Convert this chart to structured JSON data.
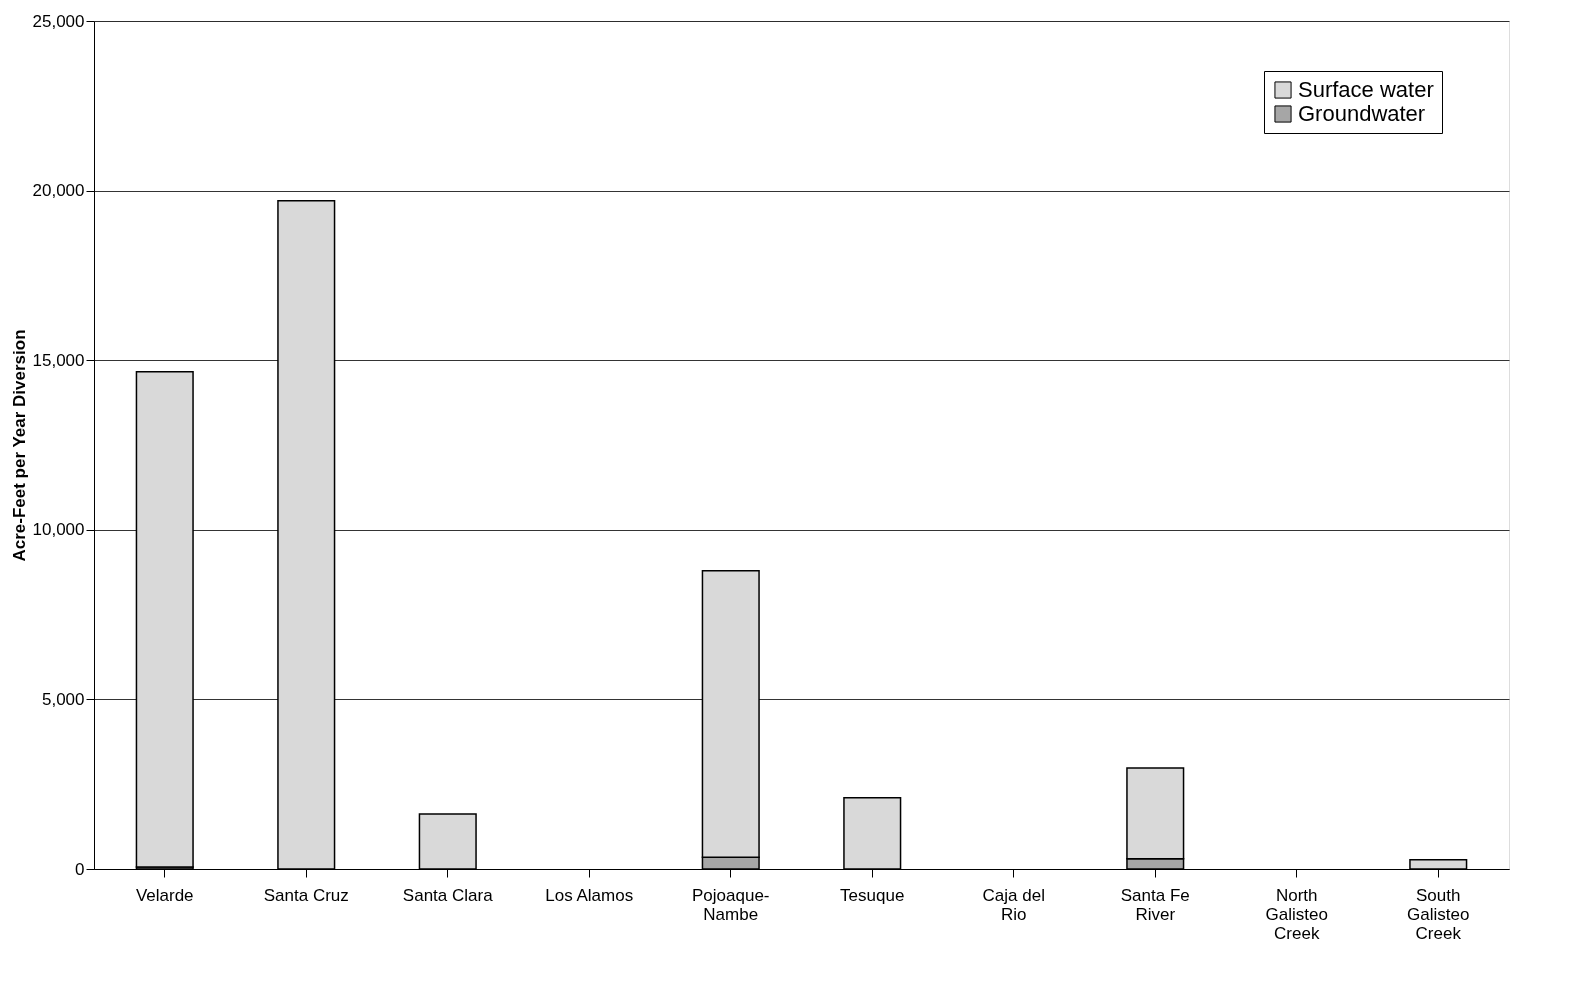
{
  "chart_data": {
    "type": "bar",
    "ylabel": "Acre-Feet per Year Diversion",
    "categories": [
      "Velarde",
      "Santa Cruz",
      "Santa Clara",
      "Los Alamos",
      "Pojoaque-Nambe",
      "Tesuque",
      "Caja del Rio",
      "Santa Fe River",
      "North Galisteo Creek",
      "South Galisteo Creek"
    ],
    "stacked": true,
    "series": [
      {
        "name": "Groundwater",
        "color": "#a6a6a6",
        "values": [
          60,
          null,
          null,
          null,
          350,
          null,
          null,
          300,
          null,
          null
        ]
      },
      {
        "name": "Surface water",
        "color": "#d9d9d9",
        "values": [
          14600,
          19700,
          1620,
          null,
          8440,
          2100,
          null,
          2680,
          null,
          270
        ]
      }
    ],
    "ylim": [
      0,
      25000
    ],
    "yticks": [
      0,
      {
        "value": 5000,
        "label": "5,000"
      },
      {
        "value": 10000,
        "label": "10,000"
      },
      {
        "value": 15000,
        "label": "15,000"
      },
      {
        "value": 20000,
        "label": "20,000"
      },
      {
        "value": 25000,
        "label": "25,000"
      }
    ],
    "grid": "y",
    "legend": "top right"
  }
}
